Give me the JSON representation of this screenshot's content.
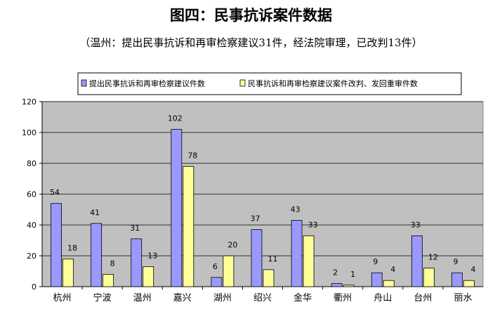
{
  "title": "图四：民事抗诉案件数据",
  "subtitle": "（温州：提出民事抗诉和再审检察建议31件，经法院审理，已改判13件）",
  "colors": {
    "series1": "#9999ff",
    "series2": "#ffff99",
    "plot_bg": "#c0c0c0"
  },
  "chart_data": {
    "type": "bar",
    "categories": [
      "杭州",
      "宁波",
      "温州",
      "嘉兴",
      "湖州",
      "绍兴",
      "金华",
      "衢州",
      "舟山",
      "台州",
      "丽水"
    ],
    "series": [
      {
        "name": "提出民事抗诉和再审检察建议件数",
        "values": [
          54,
          41,
          31,
          102,
          6,
          37,
          43,
          2,
          9,
          33,
          9
        ]
      },
      {
        "name": "民事抗诉和再审检察建议案件改判、发回重审件数",
        "values": [
          18,
          8,
          13,
          78,
          20,
          11,
          33,
          1,
          4,
          12,
          4
        ]
      }
    ],
    "yticks": [
      0,
      20,
      40,
      60,
      80,
      100,
      120
    ],
    "ylim": [
      0,
      120
    ],
    "grid": true,
    "legend": "top"
  }
}
